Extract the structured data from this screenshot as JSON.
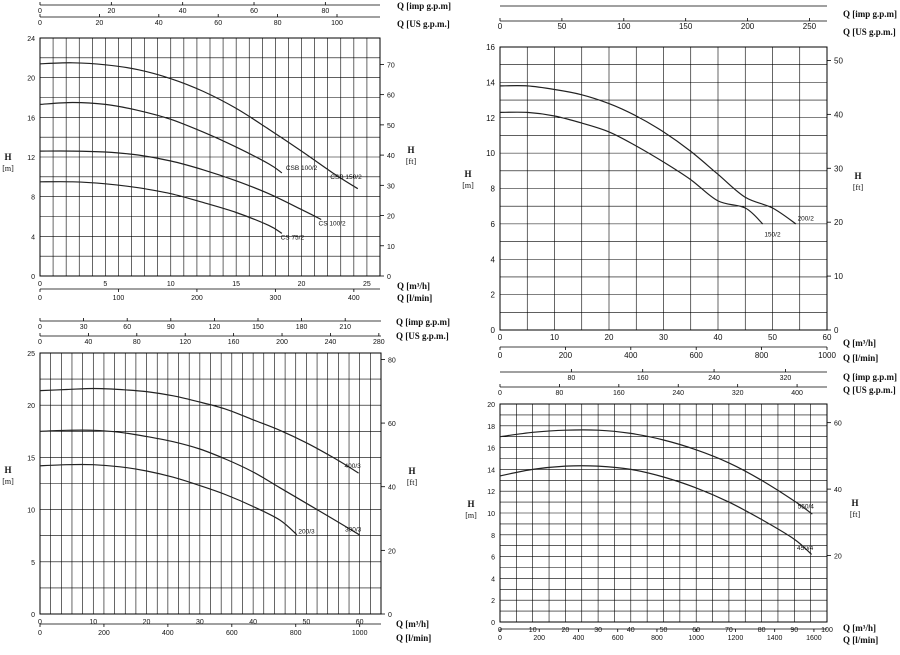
{
  "chart_data": [
    {
      "type": "line",
      "title": "",
      "xlabel": "Q [m³/h]",
      "ylabel": "H [m]",
      "y2label": "H [ft]",
      "xlim": [
        0,
        26
      ],
      "ylim": [
        0,
        24
      ],
      "xticks": [
        0,
        5,
        10,
        15,
        20,
        25
      ],
      "yticks": [
        0,
        4,
        8,
        12,
        16,
        20,
        24
      ],
      "grid": true,
      "ft_ticks": [
        0,
        10,
        20,
        30,
        40,
        50,
        60,
        70
      ],
      "secondary_axes": [
        {
          "label": "Q [l/min]",
          "factor": 16.6667,
          "ticks": [
            0,
            100,
            200,
            300,
            400
          ]
        },
        {
          "label": "Q [US g.p.m.]",
          "factor": 4.4029,
          "ticks": [
            0,
            20,
            40,
            60,
            80,
            100
          ]
        },
        {
          "label": "Q [imp g.p.m]",
          "factor": 3.6662,
          "ticks": [
            0,
            20,
            40,
            60,
            80
          ]
        }
      ],
      "series": [
        {
          "name": "CSB 150/2",
          "x": [
            0,
            2.5,
            5,
            7.5,
            10,
            12.5,
            15,
            17.5,
            20,
            22.5,
            24.3
          ],
          "y": [
            21.4,
            21.5,
            21.3,
            20.8,
            19.9,
            18.6,
            16.9,
            14.8,
            12.6,
            10.3,
            8.8
          ]
        },
        {
          "name": "CSB 100/2",
          "x": [
            0,
            2.5,
            5,
            7.5,
            10,
            12.5,
            15,
            17.5,
            18.5
          ],
          "y": [
            17.3,
            17.5,
            17.3,
            16.7,
            15.8,
            14.5,
            13.0,
            11.3,
            10.4
          ]
        },
        {
          "name": "CS 100/2",
          "x": [
            0,
            2.5,
            5,
            7.5,
            10,
            12.5,
            15,
            17.5,
            20,
            21.5
          ],
          "y": [
            12.6,
            12.6,
            12.5,
            12.2,
            11.6,
            10.7,
            9.6,
            8.3,
            6.7,
            5.7
          ]
        },
        {
          "name": "CS 75/2",
          "x": [
            0,
            2.5,
            5,
            7.5,
            10,
            12.5,
            15,
            17.5,
            18.5
          ],
          "y": [
            9.5,
            9.5,
            9.3,
            8.9,
            8.3,
            7.4,
            6.4,
            5.1,
            4.3
          ]
        }
      ]
    },
    {
      "type": "line",
      "title": "",
      "xlabel": "Q [m³/h]",
      "ylabel": "H [m]",
      "y2label": "H [ft]",
      "xlim": [
        0,
        60
      ],
      "ylim": [
        0,
        16
      ],
      "xticks": [
        0,
        10,
        20,
        30,
        40,
        50,
        60
      ],
      "yticks": [
        0,
        2,
        4,
        6,
        8,
        10,
        12,
        14,
        16
      ],
      "grid": true,
      "ft_ticks": [
        0,
        10,
        20,
        30,
        40,
        50
      ],
      "secondary_axes": [
        {
          "label": "Q [l/min]",
          "factor": 16.6667,
          "ticks": [
            0,
            200,
            400,
            600,
            800,
            1000
          ]
        },
        {
          "label": "Q [US g.p.m.]",
          "factor": 4.4029,
          "ticks": [
            0,
            50,
            100,
            150,
            200,
            250
          ]
        },
        {
          "label": "Q [imp g.p.m]",
          "factor": 3.6662,
          "ticks": []
        }
      ],
      "series": [
        {
          "name": "200/2",
          "x": [
            0,
            5,
            10,
            15,
            20,
            25,
            30,
            35,
            40,
            45,
            50,
            54.3
          ],
          "y": [
            13.8,
            13.8,
            13.6,
            13.3,
            12.8,
            12.1,
            11.2,
            10.1,
            8.8,
            7.5,
            6.9,
            6.0
          ]
        },
        {
          "name": "150/2",
          "x": [
            0,
            5,
            10,
            15,
            20,
            25,
            30,
            35,
            40,
            45,
            48.2
          ],
          "y": [
            12.3,
            12.3,
            12.1,
            11.7,
            11.2,
            10.4,
            9.5,
            8.5,
            7.3,
            6.9,
            6.0
          ]
        }
      ]
    },
    {
      "type": "line",
      "title": "",
      "xlabel": "Q [m³/h]",
      "ylabel": "H [m]",
      "y2label": "H [ft]",
      "xlim": [
        0,
        64
      ],
      "ylim": [
        0,
        25
      ],
      "xticks": [
        0,
        10,
        20,
        30,
        40,
        50,
        60
      ],
      "yticks": [
        0,
        5,
        10,
        15,
        20,
        25
      ],
      "grid": true,
      "ft_ticks": [
        0,
        20,
        40,
        60,
        80
      ],
      "secondary_axes": [
        {
          "label": "Q [l/min]",
          "factor": 16.6667,
          "ticks": [
            0,
            200,
            400,
            600,
            800,
            1000
          ]
        },
        {
          "label": "Q [US g.p.m.]",
          "factor": 4.4029,
          "ticks": [
            0,
            40,
            80,
            120,
            160,
            200,
            240,
            280
          ]
        },
        {
          "label": "Q [imp g.p.m]",
          "factor": 3.6662,
          "ticks": [
            0,
            30,
            60,
            90,
            120,
            150,
            180,
            210
          ]
        }
      ],
      "series": [
        {
          "name": "400/3",
          "x": [
            0,
            5,
            10,
            15,
            20,
            25,
            30,
            35,
            40,
            45,
            50,
            55,
            59.8
          ],
          "y": [
            21.4,
            21.5,
            21.6,
            21.5,
            21.3,
            20.9,
            20.3,
            19.6,
            18.6,
            17.6,
            16.4,
            15.0,
            13.5
          ]
        },
        {
          "name": "300/3",
          "x": [
            0,
            5,
            10,
            15,
            20,
            25,
            30,
            35,
            40,
            45,
            50,
            55,
            59.9
          ],
          "y": [
            17.5,
            17.6,
            17.6,
            17.4,
            17.0,
            16.5,
            15.8,
            14.8,
            13.6,
            12.1,
            10.6,
            9.1,
            7.6
          ]
        },
        {
          "name": "200/3",
          "x": [
            0,
            5,
            10,
            15,
            20,
            25,
            30,
            35,
            40,
            45,
            48.2
          ],
          "y": [
            14.2,
            14.3,
            14.3,
            14.1,
            13.7,
            13.1,
            12.3,
            11.4,
            10.3,
            9.0,
            7.6
          ]
        }
      ]
    },
    {
      "type": "line",
      "title": "",
      "xlabel": "Q [m³/h]",
      "ylabel": "H [m]",
      "y2label": "H [ft]",
      "xlim": [
        0,
        100
      ],
      "ylim": [
        0,
        20
      ],
      "xticks": [
        0,
        10,
        20,
        30,
        40,
        50,
        60,
        70,
        80,
        90,
        100
      ],
      "yticks": [
        0,
        2,
        4,
        6,
        8,
        10,
        12,
        14,
        16,
        18,
        20
      ],
      "grid": true,
      "ft_ticks": [
        20,
        40,
        60
      ],
      "secondary_axes": [
        {
          "label": "Q [l/min]",
          "factor": 16.6667,
          "ticks": [
            0,
            200,
            400,
            600,
            800,
            1000,
            1200,
            1400,
            1600
          ]
        },
        {
          "label": "Q [US g.p.m.]",
          "factor": 4.4029,
          "ticks": [
            0,
            80,
            160,
            240,
            320,
            400
          ]
        },
        {
          "label": "Q [imp g.p.m]",
          "factor": 3.6662,
          "ticks": [
            80,
            160,
            240,
            320
          ]
        }
      ],
      "series": [
        {
          "name": "550/4",
          "x": [
            0,
            10,
            20,
            30,
            40,
            50,
            60,
            70,
            80,
            90,
            95.5
          ],
          "y": [
            17.0,
            17.4,
            17.6,
            17.6,
            17.3,
            16.7,
            15.8,
            14.6,
            13.0,
            11.1,
            9.9
          ]
        },
        {
          "name": "450/4",
          "x": [
            0,
            10,
            20,
            30,
            40,
            50,
            60,
            70,
            80,
            90,
            95.3
          ],
          "y": [
            13.4,
            14.0,
            14.3,
            14.3,
            14.0,
            13.3,
            12.3,
            11.0,
            9.4,
            7.6,
            6.2
          ]
        }
      ]
    }
  ]
}
